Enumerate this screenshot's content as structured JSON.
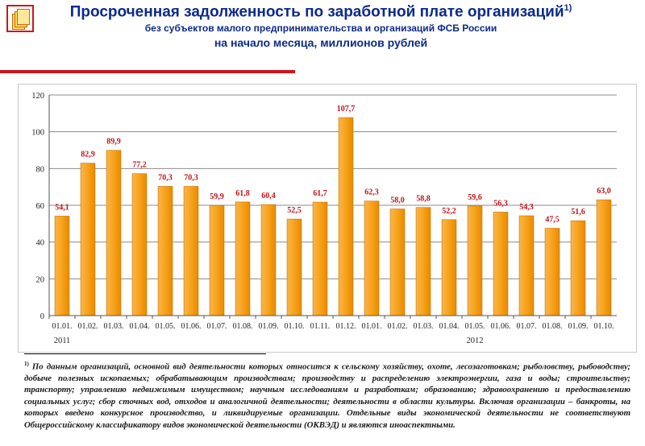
{
  "header": {
    "title": "Просроченная задолженность по заработной плате организаций",
    "title_sup": "1)",
    "subtitle": "без субъектов малого предпринимательства и организаций ФСБ России",
    "subtitle2": "на начало месяца, миллионов рублей"
  },
  "colors": {
    "bar": "#f7a21b",
    "bar_edge": "#c97000",
    "title": "#0c2a8a",
    "accent": "#d0141b",
    "label": "#c0141b"
  },
  "chart_data": {
    "type": "bar",
    "categories": [
      "01.01.",
      "01.02.",
      "01.03.",
      "01.04.",
      "01.05.",
      "01.06.",
      "01.07.",
      "01.08.",
      "01.09.",
      "01.10.",
      "01.11.",
      "01.12.",
      "01.01.",
      "01.02.",
      "01.03.",
      "01.04.",
      "01.05.",
      "01.06.",
      "01.07.",
      "01.08.",
      "01.09.",
      "01.10."
    ],
    "values": [
      54.1,
      82.9,
      89.9,
      77.2,
      70.3,
      70.3,
      59.9,
      61.8,
      60.4,
      52.5,
      61.7,
      107.7,
      62.3,
      58.0,
      58.8,
      52.2,
      59.6,
      56.3,
      54.3,
      47.5,
      51.6,
      63.0
    ],
    "labels": [
      "54,1",
      "82,9",
      "89,9",
      "77,2",
      "70,3",
      "70,3",
      "59,9",
      "61,8",
      "60,4",
      "52,5",
      "61,7",
      "107,7",
      "62,3",
      "58,0",
      "58,8",
      "52,2",
      "59,6",
      "56,3",
      "54,3",
      "47,5",
      "51,6",
      "63,0"
    ],
    "year_labels": [
      {
        "text": "2011",
        "index": 0
      },
      {
        "text": "2012",
        "index": 16
      }
    ],
    "yticks": [
      0,
      20,
      40,
      60,
      80,
      100,
      120
    ],
    "ylim": [
      0,
      120
    ],
    "grid": true,
    "legend": false,
    "title": "Просроченная задолженность по заработной плате организаций",
    "xlabel": "",
    "ylabel": ""
  },
  "footnote": {
    "marker": "1)",
    "text": "По данным организаций, основной вид деятельности которых относится к сельскому хозяйству, охоте, лесозаготовкам; рыболовству, рыбоводству; добыче полезных ископаемых; обрабатывающим производствам; производству и распределению электроэнергии, газа и воды; строительству; транспорту; управлению недвижимым имуществом; научным исследованиям и разработкам; образованию; здравоохранению и предоставлению социальных услуг; сбор сточных вод, отходов и аналогичной деятельности; деятельности в области культуры. Включая организации – банкроты, на которых введено конкурсное производство, и ликвидируемые организации. Отдельные виды экономической деятельности не соответствуют Общероссийскому классификатору видов экономической деятельности (ОКВЭД) и являются иноаспектными."
  }
}
